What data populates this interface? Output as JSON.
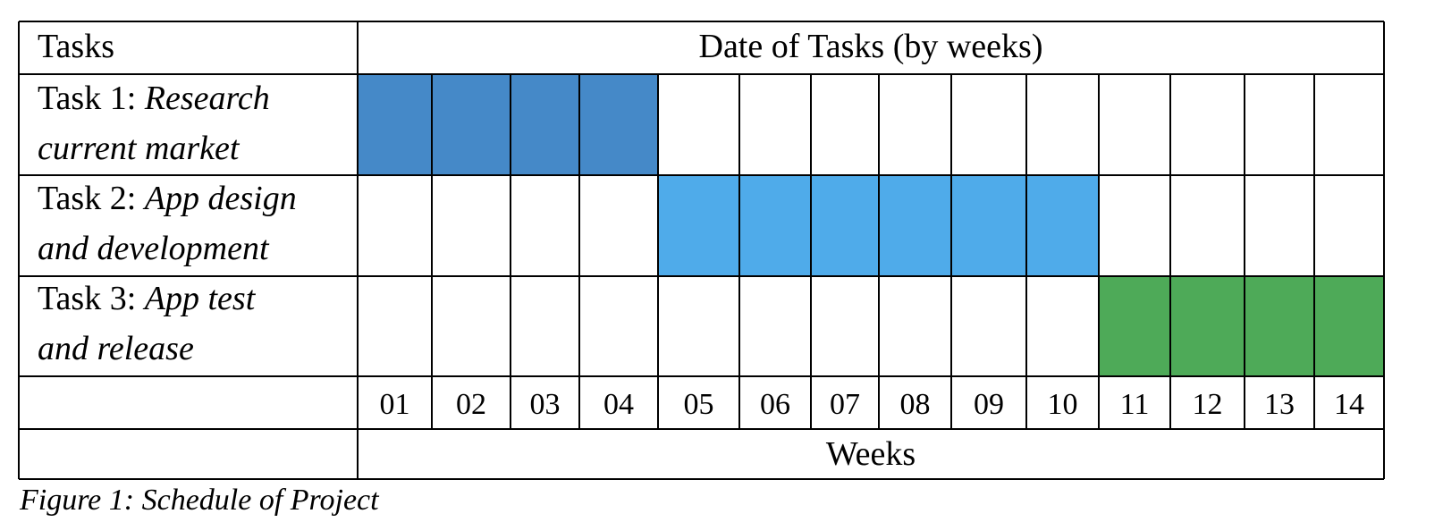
{
  "chart_data": {
    "type": "gantt",
    "header": {
      "tasks_label": "Tasks",
      "date_label": "Date of Tasks (by weeks)"
    },
    "tasks": [
      {
        "prefix": "Task 1: ",
        "name_line1": "Research",
        "name_line2": "current market",
        "start_week": 1,
        "end_week": 4,
        "color": "#4589c8"
      },
      {
        "prefix": "Task 2: ",
        "name_line1": "App design",
        "name_line2": "and development",
        "start_week": 5,
        "end_week": 10,
        "color": "#4fabea"
      },
      {
        "prefix": "Task 3: ",
        "name_line1": "App test",
        "name_line2": "and release",
        "start_week": 11,
        "end_week": 14,
        "color": "#4eaa58"
      }
    ],
    "weeks": [
      "01",
      "02",
      "03",
      "04",
      "05",
      "06",
      "07",
      "08",
      "09",
      "10",
      "11",
      "12",
      "13",
      "14"
    ],
    "xlabel": "Weeks",
    "caption": "Figure 1: Schedule of Project"
  }
}
